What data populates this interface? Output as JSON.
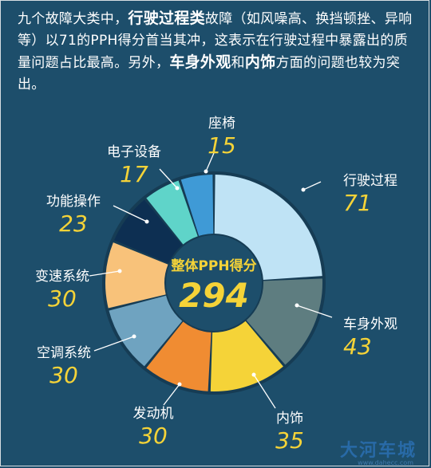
{
  "intro": {
    "t1": "九个故障大类中，",
    "b1": "行驶过程类",
    "t2": "故障（如风噪高、换挡顿挫、异响等）以71的PPH得分首当其冲，这表示在行驶过程中暴露出的质量问题占比最高。另外，",
    "b2": "车身外观",
    "t3": "和",
    "b3": "内饰",
    "t4": "方面的问题也较为突出。"
  },
  "chart_data": {
    "type": "pie",
    "donut": true,
    "center_label": "整体PPH得分",
    "total": 294,
    "slices": [
      {
        "label": "行驶过程",
        "value": 71,
        "color": "#bfe3f5"
      },
      {
        "label": "车身外观",
        "value": 43,
        "color": "#5e7d80"
      },
      {
        "label": "内饰",
        "value": 35,
        "color": "#f5d338"
      },
      {
        "label": "发动机",
        "value": 30,
        "color": "#f08c32"
      },
      {
        "label": "空调系统",
        "value": 30,
        "color": "#6fa3c0"
      },
      {
        "label": "变速系统",
        "value": 30,
        "color": "#f8c27a"
      },
      {
        "label": "功能操作",
        "value": 23,
        "color": "#0d2f52"
      },
      {
        "label": "电子设备",
        "value": 17,
        "color": "#5fd4c9"
      },
      {
        "label": "座椅",
        "value": 15,
        "color": "#3f9ad6"
      }
    ],
    "label_color": "#ffffff",
    "value_color": "#f5d338",
    "center_color": "#f5d338"
  },
  "watermark": {
    "text": "大河车城",
    "url": "www.dahecc.com"
  }
}
